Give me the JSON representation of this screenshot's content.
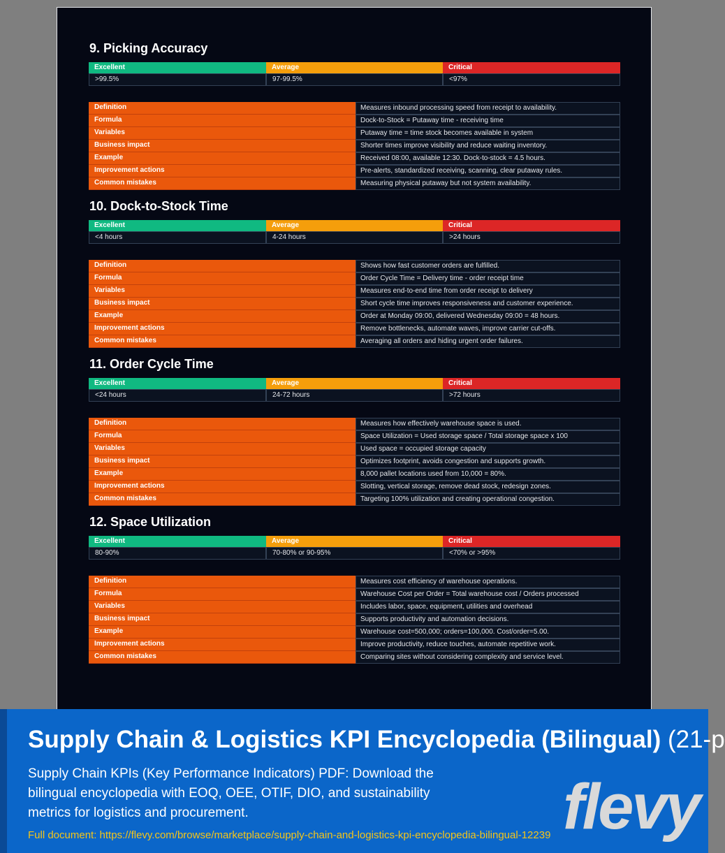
{
  "blocks": [
    {
      "title": "9. Picking Accuracy",
      "ratings": [
        "Excellent",
        "Average",
        "Critical"
      ],
      "values": [
        ">99.5%",
        "97-99.5%",
        "<97%"
      ],
      "details": [
        [
          "Definition",
          "Measures inbound processing speed from receipt to availability."
        ],
        [
          "Formula",
          "Dock-to-Stock = Putaway time - receiving time"
        ],
        [
          "Variables",
          "Putaway time = time stock becomes available in system"
        ],
        [
          "Business impact",
          "Shorter times improve visibility and reduce waiting inventory."
        ],
        [
          "Example",
          "Received 08:00, available 12:30. Dock-to-stock = 4.5 hours."
        ],
        [
          "Improvement actions",
          "Pre-alerts, standardized receiving, scanning, clear putaway rules."
        ],
        [
          "Common mistakes",
          "Measuring physical putaway but not system availability."
        ]
      ]
    },
    {
      "title": "10. Dock-to-Stock Time",
      "ratings": [
        "Excellent",
        "Average",
        "Critical"
      ],
      "values": [
        "<4 hours",
        "4-24 hours",
        ">24 hours"
      ],
      "details": [
        [
          "Definition",
          "Shows how fast customer orders are fulfilled."
        ],
        [
          "Formula",
          "Order Cycle Time = Delivery time - order receipt time"
        ],
        [
          "Variables",
          "Measures end-to-end time from order receipt to delivery"
        ],
        [
          "Business impact",
          "Short cycle time improves responsiveness and customer experience."
        ],
        [
          "Example",
          "Order at Monday 09:00, delivered Wednesday 09:00 = 48 hours."
        ],
        [
          "Improvement actions",
          "Remove bottlenecks, automate waves, improve carrier cut-offs."
        ],
        [
          "Common mistakes",
          "Averaging all orders and hiding urgent order failures."
        ]
      ]
    },
    {
      "title": "11. Order Cycle Time",
      "ratings": [
        "Excellent",
        "Average",
        "Critical"
      ],
      "values": [
        "<24 hours",
        "24-72 hours",
        ">72 hours"
      ],
      "details": [
        [
          "Definition",
          "Measures how effectively warehouse space is used."
        ],
        [
          "Formula",
          "Space Utilization = Used storage space / Total storage space x 100"
        ],
        [
          "Variables",
          "Used space = occupied storage capacity"
        ],
        [
          "Business impact",
          "Optimizes footprint, avoids congestion and supports growth."
        ],
        [
          "Example",
          "8,000 pallet locations used from 10,000 = 80%."
        ],
        [
          "Improvement actions",
          "Slotting, vertical storage, remove dead stock, redesign zones."
        ],
        [
          "Common mistakes",
          "Targeting 100% utilization and creating operational congestion."
        ]
      ]
    },
    {
      "title": "12. Space Utilization",
      "ratings": [
        "Excellent",
        "Average",
        "Critical"
      ],
      "values": [
        "80-90%",
        "70-80% or 90-95%",
        "<70% or >95%"
      ],
      "details": [
        [
          "Definition",
          "Measures cost efficiency of warehouse operations."
        ],
        [
          "Formula",
          "Warehouse Cost per Order = Total warehouse cost / Orders processed"
        ],
        [
          "Variables",
          "Includes labor, space, equipment, utilities and overhead"
        ],
        [
          "Business impact",
          "Supports productivity and automation decisions."
        ],
        [
          "Example",
          "Warehouse cost=500,000; orders=100,000. Cost/order=5.00."
        ],
        [
          "Improvement actions",
          "Improve productivity, reduce touches, automate repetitive work."
        ],
        [
          "Common mistakes",
          "Comparing sites without considering complexity and service level."
        ]
      ]
    }
  ],
  "footer": {
    "title": "Supply Chain & Logistics KPI Encyclopedia (Bilingual)",
    "title_suffix": "(21-p",
    "description": [
      "Supply Chain KPIs (Key Performance Indicators) PDF: Download the",
      "bilingual encyclopedia with EOQ, OEE, OTIF, DIO, and sustainability",
      "metrics for logistics and procurement."
    ],
    "url": "Full document: https://flevy.com/browse/marketplace/supply-chain-and-logistics-kpi-encyclopedia-bilingual-12239",
    "logo": "flevy"
  }
}
